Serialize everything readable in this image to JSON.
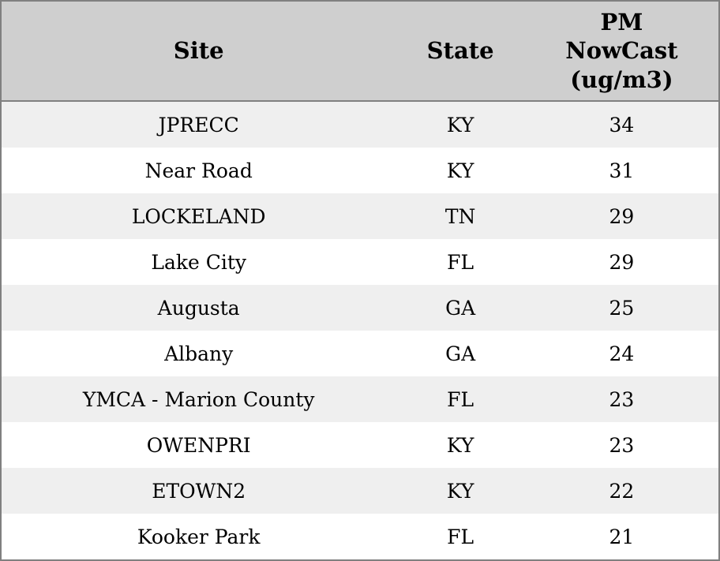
{
  "chart_data": {
    "type": "table",
    "title": "",
    "columns": [
      "Site",
      "State",
      "PM NowCast (ug/m3)"
    ],
    "rows": [
      [
        "JPRECC",
        "KY",
        34
      ],
      [
        "Near Road",
        "KY",
        31
      ],
      [
        "LOCKELAND",
        "TN",
        29
      ],
      [
        "Lake City",
        "FL",
        29
      ],
      [
        "Augusta",
        "GA",
        25
      ],
      [
        "Albany",
        "GA",
        24
      ],
      [
        "YMCA - Marion County",
        "FL",
        23
      ],
      [
        "OWENPRI",
        "KY",
        23
      ],
      [
        "ETOWN2",
        "KY",
        22
      ],
      [
        "Kooker Park",
        "FL",
        21
      ]
    ],
    "layout": {
      "header_bg": "#cfcfcf",
      "row_stripe_bg": "#efefef",
      "row_bg": "#ffffff",
      "border_color": "#808080",
      "text_color": "#000000",
      "gridlines": "horizontal-stripes-only"
    }
  },
  "table": {
    "columns": [
      {
        "label": "Site"
      },
      {
        "label": "State"
      },
      {
        "label": "PM NowCast (ug/m3)",
        "lines": [
          "PM",
          "NowCast",
          "(ug/m3)"
        ]
      }
    ],
    "rows": [
      {
        "site": "JPRECC",
        "state": "KY",
        "pm": "34"
      },
      {
        "site": "Near Road",
        "state": "KY",
        "pm": "31"
      },
      {
        "site": "LOCKELAND",
        "state": "TN",
        "pm": "29"
      },
      {
        "site": "Lake City",
        "state": "FL",
        "pm": "29"
      },
      {
        "site": "Augusta",
        "state": "GA",
        "pm": "25"
      },
      {
        "site": "Albany",
        "state": "GA",
        "pm": "24"
      },
      {
        "site": "YMCA - Marion County",
        "state": "FL",
        "pm": "23"
      },
      {
        "site": "OWENPRI",
        "state": "KY",
        "pm": "23"
      },
      {
        "site": "ETOWN2",
        "state": "KY",
        "pm": "22"
      },
      {
        "site": "Kooker Park",
        "state": "FL",
        "pm": "21"
      }
    ]
  }
}
